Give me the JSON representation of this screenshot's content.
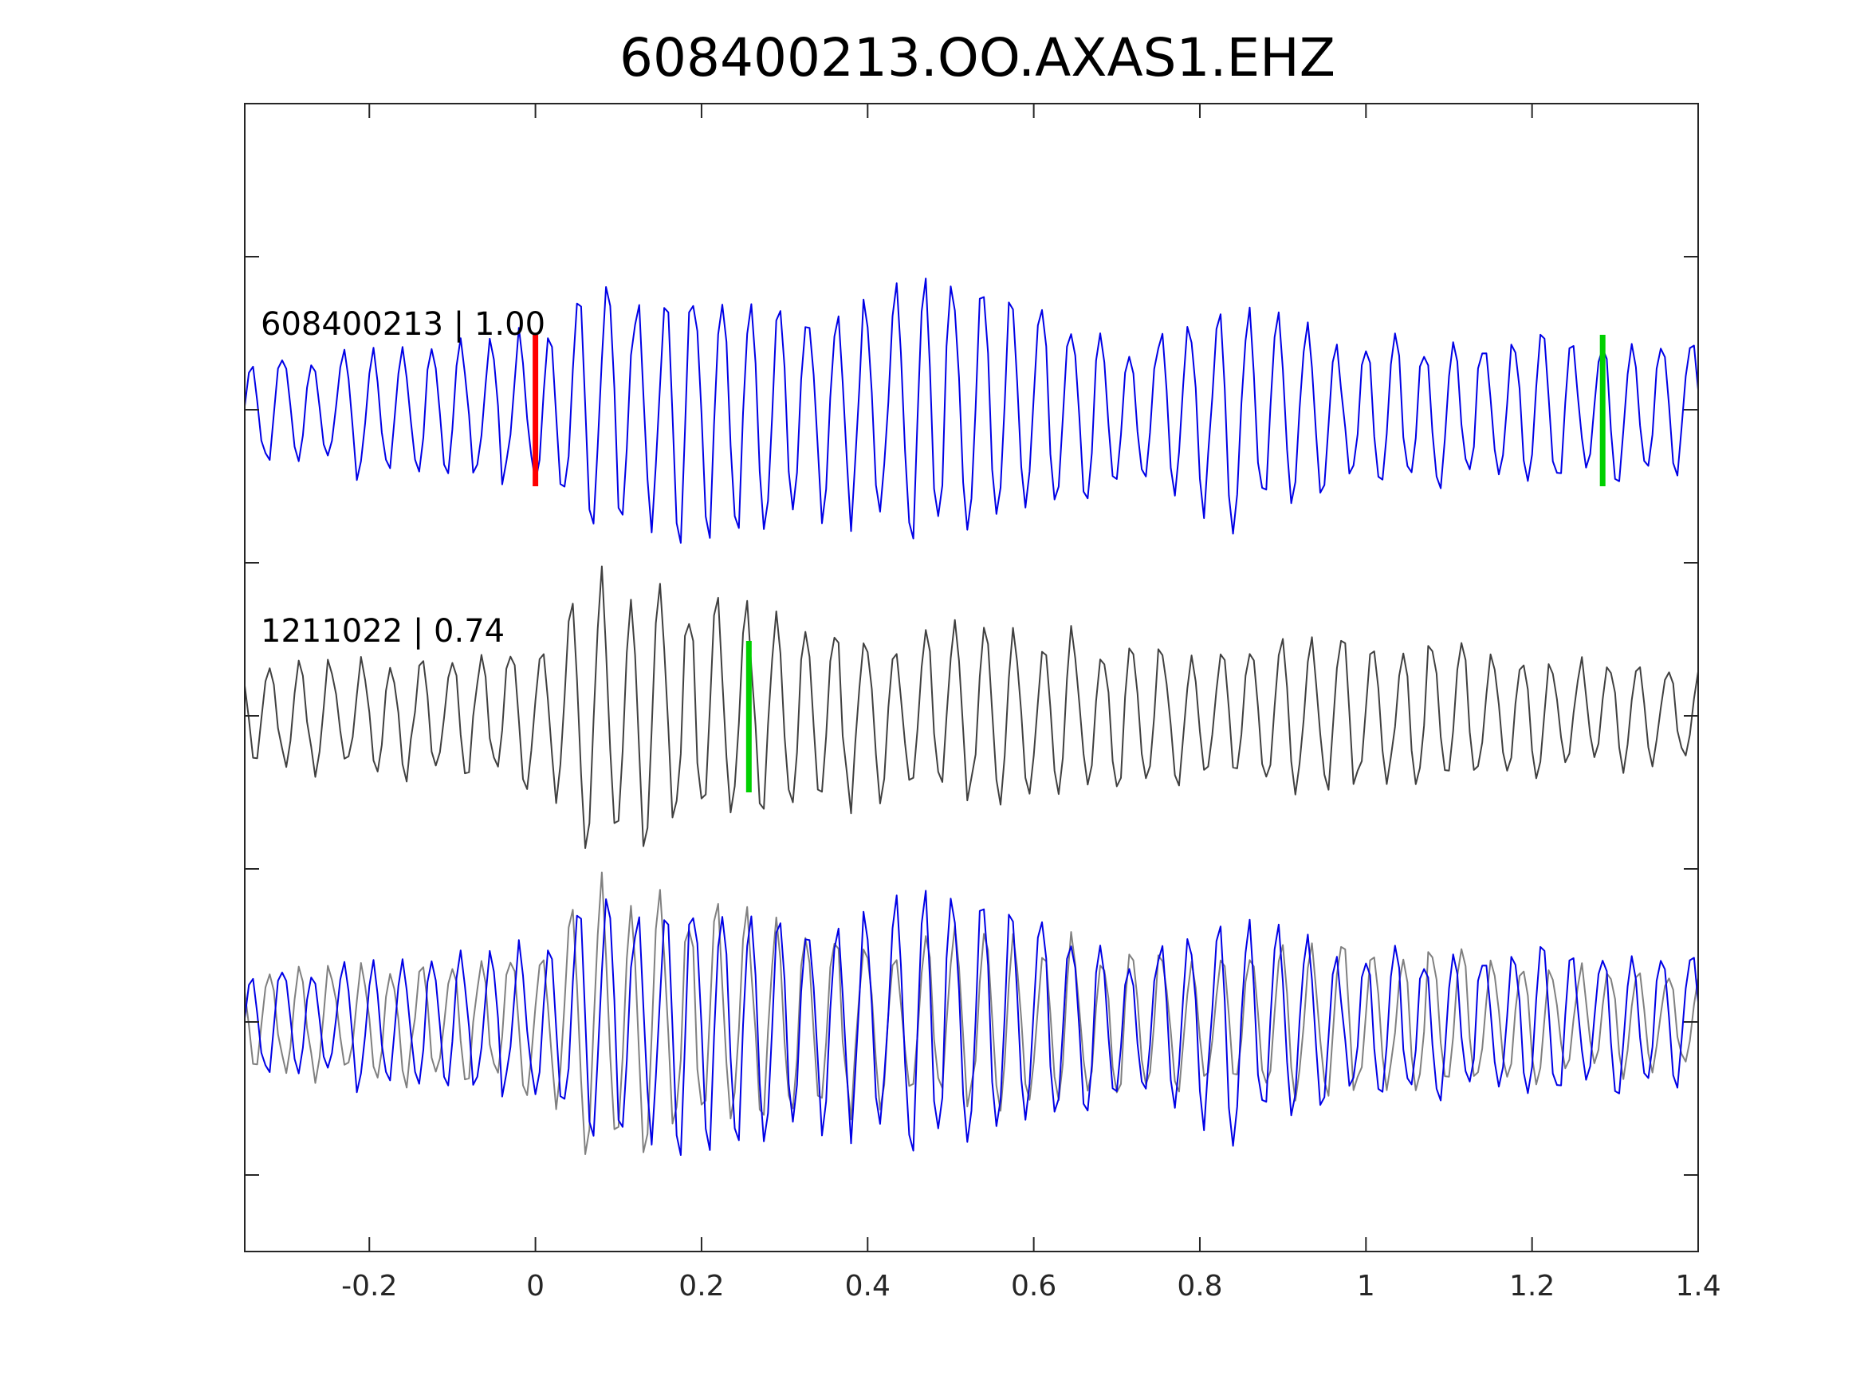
{
  "chart_data": {
    "type": "line",
    "title": "608400213.OO.AXAS1.EHZ",
    "xlabel": "",
    "ylabel": "",
    "xlim": [
      -0.35,
      1.4
    ],
    "x_ticks": [
      -0.2,
      0,
      0.2,
      0.4,
      0.6,
      0.8,
      1,
      1.2,
      1.4
    ],
    "x_tick_labels": [
      "-0.2",
      "0",
      "0.2",
      "0.4",
      "0.6",
      "0.8",
      "1",
      "1.2",
      "1.4"
    ],
    "y_ticks_count": 7,
    "grid": false,
    "sample_interval": 0.005,
    "traces": [
      {
        "label": "608400213 | 1.00",
        "color": "#0000e6",
        "t0": -0.35,
        "markers": [
          {
            "t": 0.0,
            "color": "#ff0000"
          },
          {
            "t": 1.285,
            "color": "#00d000"
          }
        ],
        "segments": [
          {
            "t": -0.35,
            "amp": 0.35,
            "freq": 27,
            "seed": 11
          },
          {
            "t": 0.03,
            "amp": 0.55,
            "freq": 28,
            "seed": 12
          },
          {
            "t": 0.09,
            "amp": 0.95,
            "freq": 29,
            "seed": 13
          },
          {
            "t": 0.35,
            "amp": 0.7,
            "freq": 28,
            "seed": 14
          },
          {
            "t": 0.48,
            "amp": 0.95,
            "freq": 29,
            "seed": 15
          },
          {
            "t": 0.72,
            "amp": 0.45,
            "freq": 28,
            "seed": 16
          },
          {
            "t": 0.82,
            "amp": 0.75,
            "freq": 28,
            "seed": 17
          },
          {
            "t": 0.97,
            "amp": 0.55,
            "freq": 28,
            "seed": 18
          },
          {
            "t": 1.4,
            "amp": 0.45,
            "freq": 28,
            "seed": 19
          }
        ]
      },
      {
        "label": "1211022 | 0.74",
        "color": "#404040",
        "t0": -0.35,
        "markers": [
          {
            "t": 0.257,
            "color": "#00d000"
          }
        ],
        "segments": [
          {
            "t": -0.35,
            "amp": 0.35,
            "freq": 28,
            "seed": 21
          },
          {
            "t": 0.01,
            "amp": 0.45,
            "freq": 28,
            "seed": 22
          },
          {
            "t": 0.06,
            "amp": 0.95,
            "freq": 28,
            "seed": 23
          },
          {
            "t": 0.4,
            "amp": 0.55,
            "freq": 28,
            "seed": 24
          },
          {
            "t": 0.52,
            "amp": 0.6,
            "freq": 28,
            "seed": 25
          },
          {
            "t": 0.8,
            "amp": 0.45,
            "freq": 28,
            "seed": 26
          },
          {
            "t": 0.95,
            "amp": 0.55,
            "freq": 28,
            "seed": 27
          },
          {
            "t": 1.4,
            "amp": 0.3,
            "freq": 28,
            "seed": 28
          }
        ]
      }
    ],
    "overlay": {
      "colors": [
        "#808080",
        "#0000e6"
      ]
    }
  }
}
